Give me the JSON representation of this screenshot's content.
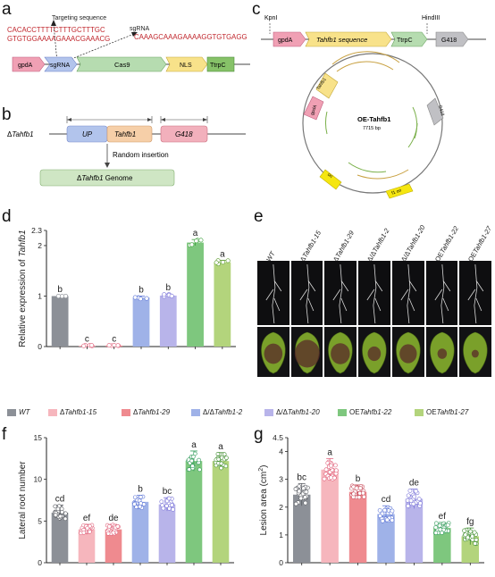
{
  "panels": {
    "a": "a",
    "b": "b",
    "c": "c",
    "d": "d",
    "e": "e",
    "f": "f",
    "g": "g"
  },
  "panel_a": {
    "targeting_label": "Targeting sequence",
    "sgrna_label": "sgRNA",
    "target_seq_line1": "CACACCTTTTCTTTGCTTTGC",
    "target_seq_line2": "GTGTGGAAAAGAAACGAAACG",
    "sgrna_seq": "CAAAGCAAAGAAAAGGTGTGAGG",
    "boxes": [
      "gpdA",
      "sgRNA",
      "Cas9",
      "NLS",
      "TtrpC"
    ]
  },
  "panel_b": {
    "strain_label_prefix": "Δ",
    "strain_label_gene": "Tahfb1",
    "boxes": [
      "UP",
      "Tahfb1",
      "G418"
    ],
    "insertion_label": "Random insertion",
    "genome_prefix": "Δ",
    "genome_gene": "Tahfb1",
    "genome_suffix": " Genome"
  },
  "panel_c": {
    "kpnI": "KpnI",
    "hindIII": "HindIII",
    "boxes": [
      "gpdA",
      "Tahfb1 sequence",
      "TtrpC",
      "G418"
    ],
    "plasmid_name": "OE-Tahfb1",
    "plasmid_size": "7715 bp",
    "map_labels": [
      "Tahfb1",
      "gpdA",
      "G418",
      "ori",
      "f1 ori"
    ]
  },
  "panel_e": {
    "columns": [
      "WT",
      "ΔTahfb1-15",
      "ΔTahfb1-29",
      "Δ/ΔTahfb1-2",
      "Δ/ΔTahfb1-20",
      "OETahfb1-22",
      "OETahfb1-27"
    ]
  },
  "legend": {
    "entries": [
      {
        "label": "WT",
        "color": "#8c9097"
      },
      {
        "label": "ΔTahfb1-15",
        "color": "#f6b6bd"
      },
      {
        "label": "ΔTahfb1-29",
        "color": "#ef8a8f"
      },
      {
        "label": "Δ/ΔTahfb1-2",
        "color": "#9fb2e8"
      },
      {
        "label": "Δ/ΔTahfb1-20",
        "color": "#b8b4ea"
      },
      {
        "label": "OETahfb1-22",
        "color": "#7ec77e"
      },
      {
        "label": "OETahfb1-27",
        "color": "#b3d47c"
      }
    ]
  },
  "chart_data": [
    {
      "panel": "d",
      "type": "bar",
      "ylabel_prefix": "Relative expression of ",
      "ylabel_gene": "Tahfb1",
      "ylim": [
        0,
        2.3
      ],
      "yticks": [
        "0",
        "1",
        "2",
        "2.3"
      ],
      "categories": [
        "WT",
        "ΔTahfb1-15",
        "ΔTahfb1-29",
        "Δ/ΔTahfb1-2",
        "Δ/ΔTahfb1-20",
        "OETahfb1-22",
        "OETahfb1-27"
      ],
      "values": [
        1.0,
        0.02,
        0.02,
        0.97,
        1.01,
        2.06,
        1.67
      ],
      "errors": [
        0.01,
        0.01,
        0.01,
        0.03,
        0.03,
        0.06,
        0.04
      ],
      "letters": [
        "b",
        "c",
        "c",
        "b",
        "b",
        "a",
        "a"
      ],
      "colors": [
        "#8c9097",
        "#f6b6bd",
        "#ef8a8f",
        "#9fb2e8",
        "#b8b4ea",
        "#7ec77e",
        "#b3d47c"
      ],
      "edge_colors": [
        "#8c9097",
        "#e0607a",
        "#e0607a",
        "#5b74d6",
        "#7a74d8",
        "#3aa03a",
        "#5a9a2a"
      ]
    },
    {
      "panel": "f",
      "type": "bar",
      "ylabel": "Lateral root number",
      "ylim": [
        0,
        15
      ],
      "yticks": [
        "0",
        "5",
        "10",
        "15"
      ],
      "categories": [
        "WT",
        "ΔTahfb1-15",
        "ΔTahfb1-29",
        "Δ/ΔTahfb1-2",
        "Δ/ΔTahfb1-20",
        "OETahfb1-22",
        "OETahfb1-27"
      ],
      "values": [
        6.0,
        4.0,
        4.0,
        7.3,
        7.0,
        12.2,
        12.2
      ],
      "errors": [
        0.9,
        0.6,
        0.6,
        0.8,
        0.8,
        1.2,
        1.0
      ],
      "letters": [
        "cd",
        "ef",
        "de",
        "b",
        "bc",
        "a",
        "a"
      ],
      "colors": [
        "#8c9097",
        "#f6b6bd",
        "#ef8a8f",
        "#9fb2e8",
        "#b8b4ea",
        "#7ec77e",
        "#b3d47c"
      ],
      "edge_colors": [
        "#55585e",
        "#e0607a",
        "#e0607a",
        "#5b74d6",
        "#7a74d8",
        "#2f9a58",
        "#3a8a2a"
      ]
    },
    {
      "panel": "g",
      "type": "bar",
      "ylabel_prefix": "Lesion area (cm",
      "ylabel_sup": "2",
      "ylabel_suffix": ")",
      "ylim": [
        0,
        4.5
      ],
      "yticks": [
        "0",
        "1",
        "2",
        "3",
        "4",
        "4.5"
      ],
      "categories": [
        "WT",
        "ΔTahfb1-15",
        "ΔTahfb1-29",
        "Δ/ΔTahfb1-2",
        "Δ/ΔTahfb1-20",
        "OETahfb1-22",
        "OETahfb1-27"
      ],
      "values": [
        2.45,
        3.35,
        2.55,
        1.75,
        2.3,
        1.25,
        0.95
      ],
      "errors": [
        0.4,
        0.4,
        0.25,
        0.3,
        0.35,
        0.2,
        0.3
      ],
      "letters": [
        "bc",
        "a",
        "b",
        "cd",
        "de",
        "ef",
        "fg"
      ],
      "colors": [
        "#8c9097",
        "#f6b6bd",
        "#ef8a8f",
        "#9fb2e8",
        "#b8b4ea",
        "#7ec77e",
        "#b3d47c"
      ],
      "edge_colors": [
        "#55585e",
        "#e0607a",
        "#c9515f",
        "#5b74d6",
        "#7a74d8",
        "#2f9a58",
        "#3a8a2a"
      ]
    }
  ]
}
